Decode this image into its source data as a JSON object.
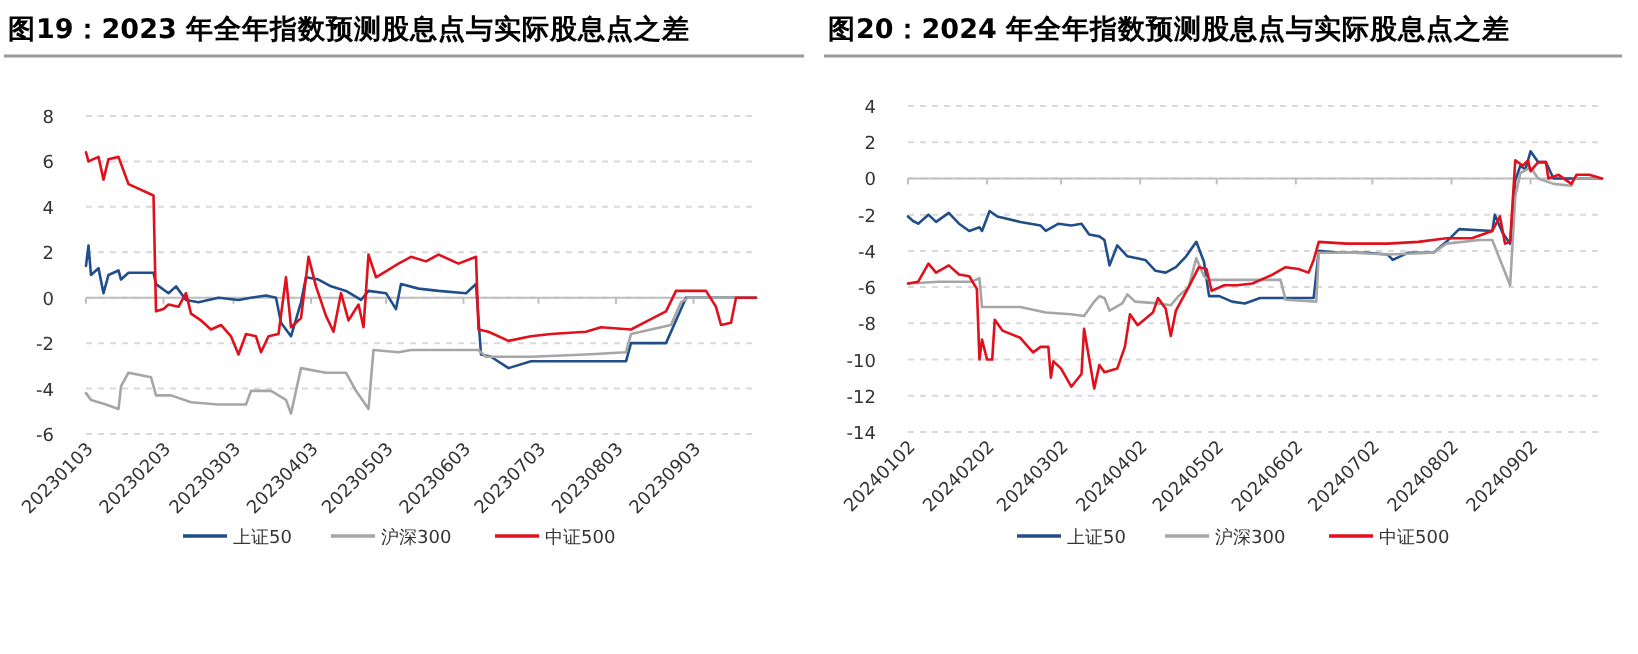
{
  "chart_data": [
    {
      "type": "line",
      "title": "图19：2023 年全年指数预测股息点与实际股息点之差",
      "xlim": [
        "2023-01-03",
        "2023-09-28"
      ],
      "ylim": [
        -6,
        8
      ],
      "yticks": [
        -6,
        -4,
        -2,
        0,
        2,
        4,
        6,
        8
      ],
      "grid": "y",
      "legend": "bottom",
      "marker": "none",
      "line_style": "solid",
      "xticks": [
        {
          "value": "2023-01-03",
          "label": "20230103"
        },
        {
          "value": "2023-02-03",
          "label": "20230203"
        },
        {
          "value": "2023-03-03",
          "label": "20230303"
        },
        {
          "value": "2023-04-03",
          "label": "20230403"
        },
        {
          "value": "2023-05-03",
          "label": "20230503"
        },
        {
          "value": "2023-06-03",
          "label": "20230603"
        },
        {
          "value": "2023-07-03",
          "label": "20230703"
        },
        {
          "value": "2023-08-03",
          "label": "20230803"
        },
        {
          "value": "2023-09-03",
          "label": "20230903"
        }
      ],
      "series": [
        {
          "name": "上证50",
          "color": "#1f4e89",
          "x": [
            "2023-01-03",
            "2023-01-04",
            "2023-01-05",
            "2023-01-08",
            "2023-01-10",
            "2023-01-12",
            "2023-01-16",
            "2023-01-17",
            "2023-01-20",
            "2023-01-30",
            "2023-01-31",
            "2023-02-05",
            "2023-02-08",
            "2023-02-12",
            "2023-02-17",
            "2023-02-25",
            "2023-03-05",
            "2023-03-10",
            "2023-03-16",
            "2023-03-20",
            "2023-03-22",
            "2023-03-26",
            "2023-03-30",
            "2023-04-01",
            "2023-04-06",
            "2023-04-11",
            "2023-04-17",
            "2023-04-23",
            "2023-04-26",
            "2023-05-03",
            "2023-05-07",
            "2023-05-09",
            "2023-05-16",
            "2023-05-24",
            "2023-06-04",
            "2023-06-08",
            "2023-06-10",
            "2023-06-14",
            "2023-06-21",
            "2023-06-30",
            "2023-07-14",
            "2023-07-27",
            "2023-08-07",
            "2023-08-09",
            "2023-08-23",
            "2023-08-27",
            "2023-08-31",
            "2023-09-18",
            "2023-09-28"
          ],
          "values": [
            1.4,
            2.3,
            1.0,
            1.3,
            0.2,
            1.0,
            1.2,
            0.8,
            1.1,
            1.1,
            0.6,
            0.2,
            0.5,
            -0.1,
            -0.2,
            0.0,
            -0.1,
            0.0,
            0.1,
            0.0,
            -1.1,
            -1.7,
            -0.2,
            0.9,
            0.8,
            0.5,
            0.3,
            -0.1,
            0.3,
            0.2,
            -0.5,
            0.6,
            0.4,
            0.3,
            0.2,
            0.6,
            -2.5,
            -2.6,
            -3.1,
            -2.8,
            -2.8,
            -2.8,
            -2.8,
            -2.0,
            -2.0,
            -1.0,
            0.0,
            0.0,
            0.0
          ]
        },
        {
          "name": "沪深300",
          "color": "#a6a6a6",
          "x": [
            "2023-01-03",
            "2023-01-05",
            "2023-01-11",
            "2023-01-16",
            "2023-01-17",
            "2023-01-20",
            "2023-01-29",
            "2023-01-31",
            "2023-02-06",
            "2023-02-14",
            "2023-02-25",
            "2023-03-08",
            "2023-03-10",
            "2023-03-18",
            "2023-03-24",
            "2023-03-26",
            "2023-03-30",
            "2023-04-09",
            "2023-04-17",
            "2023-04-21",
            "2023-04-26",
            "2023-04-28",
            "2023-05-08",
            "2023-05-13",
            "2023-06-09",
            "2023-06-12",
            "2023-06-30",
            "2023-07-22",
            "2023-08-07",
            "2023-08-09",
            "2023-08-17",
            "2023-08-25",
            "2023-08-29",
            "2023-09-01",
            "2023-09-18",
            "2023-09-28"
          ],
          "values": [
            -4.2,
            -4.5,
            -4.7,
            -4.9,
            -3.9,
            -3.3,
            -3.5,
            -4.3,
            -4.3,
            -4.6,
            -4.7,
            -4.7,
            -4.1,
            -4.1,
            -4.5,
            -5.1,
            -3.1,
            -3.3,
            -3.3,
            -4.1,
            -4.9,
            -2.3,
            -2.4,
            -2.3,
            -2.3,
            -2.6,
            -2.6,
            -2.5,
            -2.4,
            -1.6,
            -1.4,
            -1.2,
            -0.2,
            0.0,
            0.0,
            0.0
          ]
        },
        {
          "name": "中证500",
          "color": "#e0101d",
          "x": [
            "2023-01-03",
            "2023-01-04",
            "2023-01-08",
            "2023-01-10",
            "2023-01-12",
            "2023-01-16",
            "2023-01-18",
            "2023-01-20",
            "2023-01-30",
            "2023-01-31",
            "2023-02-03",
            "2023-02-05",
            "2023-02-09",
            "2023-02-12",
            "2023-02-14",
            "2023-02-18",
            "2023-02-22",
            "2023-02-26",
            "2023-03-02",
            "2023-03-05",
            "2023-03-08",
            "2023-03-12",
            "2023-03-14",
            "2023-03-17",
            "2023-03-21",
            "2023-03-24",
            "2023-03-26",
            "2023-03-30",
            "2023-04-02",
            "2023-04-05",
            "2023-04-09",
            "2023-04-12",
            "2023-04-15",
            "2023-04-18",
            "2023-04-22",
            "2023-04-24",
            "2023-04-26",
            "2023-04-29",
            "2023-05-08",
            "2023-05-13",
            "2023-05-19",
            "2023-05-24",
            "2023-06-01",
            "2023-06-08",
            "2023-06-09",
            "2023-06-13",
            "2023-06-21",
            "2023-06-30",
            "2023-07-08",
            "2023-07-22",
            "2023-07-28",
            "2023-08-09",
            "2023-08-16",
            "2023-08-23",
            "2023-08-27",
            "2023-09-08",
            "2023-09-12",
            "2023-09-14",
            "2023-09-18",
            "2023-09-20",
            "2023-09-28"
          ],
          "values": [
            6.4,
            6.0,
            6.2,
            5.2,
            6.1,
            6.2,
            5.6,
            5.0,
            4.5,
            -0.6,
            -0.5,
            -0.3,
            -0.4,
            0.2,
            -0.7,
            -1.0,
            -1.4,
            -1.2,
            -1.7,
            -2.5,
            -1.6,
            -1.7,
            -2.4,
            -1.7,
            -1.6,
            0.9,
            -1.3,
            -0.9,
            1.8,
            0.5,
            -0.8,
            -1.5,
            0.2,
            -1.0,
            -0.3,
            -1.3,
            1.9,
            0.9,
            1.5,
            1.8,
            1.6,
            1.9,
            1.5,
            1.8,
            -1.4,
            -1.5,
            -1.9,
            -1.7,
            -1.6,
            -1.5,
            -1.3,
            -1.4,
            -1.0,
            -0.6,
            0.3,
            0.3,
            -0.4,
            -1.2,
            -1.1,
            0.0,
            0.0
          ]
        }
      ]
    },
    {
      "type": "line",
      "title": "图20：2024 年全年指数预测股息点与实际股息点之差",
      "xlim": [
        "2024-01-02",
        "2024-09-30"
      ],
      "ylim": [
        -14,
        4
      ],
      "yticks": [
        -14,
        -12,
        -10,
        -8,
        -6,
        -4,
        -2,
        0,
        2,
        4
      ],
      "grid": "y",
      "legend": "bottom",
      "marker": "none",
      "line_style": "solid",
      "xticks": [
        {
          "value": "2024-01-02",
          "label": "20240102"
        },
        {
          "value": "2024-02-02",
          "label": "20240202"
        },
        {
          "value": "2024-03-02",
          "label": "20240302"
        },
        {
          "value": "2024-04-02",
          "label": "20240402"
        },
        {
          "value": "2024-05-02",
          "label": "20240502"
        },
        {
          "value": "2024-06-02",
          "label": "20240602"
        },
        {
          "value": "2024-07-02",
          "label": "20240702"
        },
        {
          "value": "2024-08-02",
          "label": "20240802"
        },
        {
          "value": "2024-09-02",
          "label": "20240902"
        }
      ],
      "series": [
        {
          "name": "上证50",
          "color": "#1f4e89",
          "x": [
            "2024-01-02",
            "2024-01-04",
            "2024-01-06",
            "2024-01-10",
            "2024-01-13",
            "2024-01-18",
            "2024-01-22",
            "2024-01-26",
            "2024-01-30",
            "2024-01-31",
            "2024-02-03",
            "2024-02-06",
            "2024-02-15",
            "2024-02-23",
            "2024-02-25",
            "2024-03-01",
            "2024-03-06",
            "2024-03-10",
            "2024-03-13",
            "2024-03-17",
            "2024-03-19",
            "2024-03-21",
            "2024-03-24",
            "2024-03-28",
            "2024-04-04",
            "2024-04-08",
            "2024-04-12",
            "2024-04-16",
            "2024-04-20",
            "2024-04-24",
            "2024-04-27",
            "2024-04-29",
            "2024-05-03",
            "2024-05-08",
            "2024-05-13",
            "2024-05-19",
            "2024-05-24",
            "2024-05-29",
            "2024-06-03",
            "2024-06-09",
            "2024-06-11",
            "2024-06-19",
            "2024-06-30",
            "2024-07-08",
            "2024-07-10",
            "2024-07-16",
            "2024-07-26",
            "2024-07-31",
            "2024-08-05",
            "2024-08-18",
            "2024-08-19",
            "2024-08-22",
            "2024-08-25",
            "2024-08-27",
            "2024-08-29",
            "2024-08-31",
            "2024-09-02",
            "2024-09-05",
            "2024-09-08",
            "2024-09-11",
            "2024-09-19",
            "2024-09-30"
          ],
          "values": [
            -2.1,
            -2.35,
            -2.5,
            -2.0,
            -2.4,
            -1.9,
            -2.5,
            -2.9,
            -2.7,
            -2.9,
            -1.8,
            -2.1,
            -2.4,
            -2.6,
            -2.9,
            -2.5,
            -2.6,
            -2.5,
            -3.1,
            -3.2,
            -3.4,
            -4.8,
            -3.7,
            -4.3,
            -4.5,
            -5.1,
            -5.2,
            -4.9,
            -4.3,
            -3.5,
            -4.6,
            -6.5,
            -6.5,
            -6.8,
            -6.9,
            -6.6,
            -6.6,
            -6.6,
            -6.6,
            -6.6,
            -4.0,
            -4.1,
            -4.1,
            -4.2,
            -4.5,
            -4.1,
            -4.1,
            -3.5,
            -2.8,
            -2.9,
            -2.0,
            -3.0,
            -3.6,
            -0.1,
            0.7,
            0.5,
            1.5,
            0.9,
            0.9,
            0.0,
            0.0,
            0.0
          ]
        },
        {
          "name": "沪深300",
          "color": "#a6a6a6",
          "x": [
            "2024-01-02",
            "2024-01-14",
            "2024-01-27",
            "2024-01-30",
            "2024-01-31",
            "2024-02-15",
            "2024-02-25",
            "2024-03-06",
            "2024-03-11",
            "2024-03-15",
            "2024-03-17",
            "2024-03-19",
            "2024-03-21",
            "2024-03-26",
            "2024-03-28",
            "2024-03-31",
            "2024-04-09",
            "2024-04-14",
            "2024-04-17",
            "2024-04-21",
            "2024-04-24",
            "2024-04-27",
            "2024-04-29",
            "2024-05-13",
            "2024-05-27",
            "2024-05-29",
            "2024-06-10",
            "2024-06-11",
            "2024-06-24",
            "2024-07-08",
            "2024-07-26",
            "2024-07-31",
            "2024-08-13",
            "2024-08-18",
            "2024-08-25",
            "2024-08-27",
            "2024-08-29",
            "2024-09-02",
            "2024-09-05",
            "2024-09-11",
            "2024-09-18",
            "2024-09-19",
            "2024-09-30"
          ],
          "values": [
            -5.8,
            -5.7,
            -5.7,
            -5.5,
            -7.1,
            -7.1,
            -7.4,
            -7.5,
            -7.6,
            -6.8,
            -6.5,
            -6.6,
            -7.3,
            -6.9,
            -6.4,
            -6.8,
            -6.9,
            -7.0,
            -6.5,
            -6.0,
            -4.4,
            -5.4,
            -5.6,
            -5.6,
            -5.6,
            -6.7,
            -6.8,
            -4.1,
            -4.1,
            -4.2,
            -4.1,
            -3.6,
            -3.4,
            -3.4,
            -5.9,
            -1.0,
            0.3,
            0.6,
            0.0,
            -0.3,
            -0.4,
            0.0,
            0.0
          ]
        },
        {
          "name": "中证500",
          "color": "#e0101d",
          "x": [
            "2024-01-02",
            "2024-01-06",
            "2024-01-10",
            "2024-01-13",
            "2024-01-18",
            "2024-01-22",
            "2024-01-26",
            "2024-01-29",
            "2024-01-30",
            "2024-01-31",
            "2024-02-02",
            "2024-02-04",
            "2024-02-05",
            "2024-02-08",
            "2024-02-15",
            "2024-02-20",
            "2024-02-23",
            "2024-02-26",
            "2024-02-27",
            "2024-02-28",
            "2024-03-02",
            "2024-03-06",
            "2024-03-10",
            "2024-03-11",
            "2024-03-15",
            "2024-03-17",
            "2024-03-19",
            "2024-03-24",
            "2024-03-27",
            "2024-03-29",
            "2024-04-01",
            "2024-04-07",
            "2024-04-09",
            "2024-04-12",
            "2024-04-14",
            "2024-04-16",
            "2024-04-21",
            "2024-04-25",
            "2024-04-28",
            "2024-04-30",
            "2024-05-05",
            "2024-05-10",
            "2024-05-16",
            "2024-05-24",
            "2024-05-29",
            "2024-06-03",
            "2024-06-07",
            "2024-06-09",
            "2024-06-11",
            "2024-06-22",
            "2024-07-08",
            "2024-07-20",
            "2024-07-31",
            "2024-08-10",
            "2024-08-18",
            "2024-08-21",
            "2024-08-23",
            "2024-08-25",
            "2024-08-27",
            "2024-08-30",
            "2024-09-01",
            "2024-09-02",
            "2024-09-05",
            "2024-09-08",
            "2024-09-09",
            "2024-09-13",
            "2024-09-18",
            "2024-09-20",
            "2024-09-25",
            "2024-09-30"
          ],
          "values": [
            -5.8,
            -5.7,
            -4.7,
            -5.2,
            -4.8,
            -5.3,
            -5.4,
            -6.1,
            -10.0,
            -8.9,
            -10.0,
            -10.0,
            -7.8,
            -8.4,
            -8.8,
            -9.6,
            -9.3,
            -9.3,
            -11.0,
            -10.1,
            -10.5,
            -11.5,
            -10.8,
            -8.3,
            -11.6,
            -10.3,
            -10.7,
            -10.5,
            -9.3,
            -7.5,
            -8.1,
            -7.4,
            -6.6,
            -7.2,
            -8.7,
            -7.3,
            -6.0,
            -4.9,
            -5.0,
            -6.2,
            -5.9,
            -5.9,
            -5.8,
            -5.3,
            -4.9,
            -5.0,
            -5.2,
            -4.5,
            -3.5,
            -3.6,
            -3.6,
            -3.5,
            -3.3,
            -3.3,
            -2.9,
            -2.1,
            -3.6,
            -3.5,
            1.0,
            0.7,
            1.0,
            0.4,
            0.9,
            0.9,
            0.0,
            0.2,
            -0.3,
            0.2,
            0.2,
            0.0
          ]
        }
      ]
    }
  ]
}
